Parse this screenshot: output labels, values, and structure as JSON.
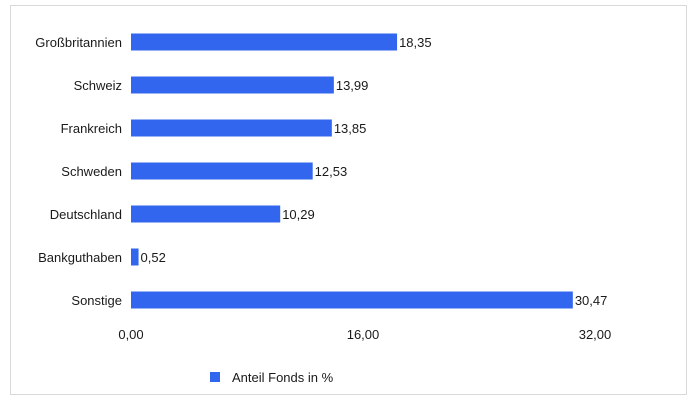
{
  "chart_data": {
    "type": "bar",
    "orientation": "horizontal",
    "categories": [
      "Großbritannien",
      "Schweiz",
      "Frankreich",
      "Schweden",
      "Deutschland",
      "Bankguthaben",
      "Sonstige"
    ],
    "series": [
      {
        "name": "Anteil Fonds in %",
        "values": [
          18.35,
          13.99,
          13.85,
          12.53,
          10.29,
          0.52,
          30.47
        ],
        "value_labels": [
          "18,35",
          "13,99",
          "13,85",
          "12,53",
          "10,29",
          "0,52",
          "30,47"
        ],
        "color": "#3366ee"
      }
    ],
    "xlim": [
      0,
      32
    ],
    "x_ticks": [
      0,
      16,
      32
    ],
    "x_tick_labels": [
      "0,00",
      "16,00",
      "32,00"
    ],
    "grid": false,
    "legend_position": "bottom"
  }
}
